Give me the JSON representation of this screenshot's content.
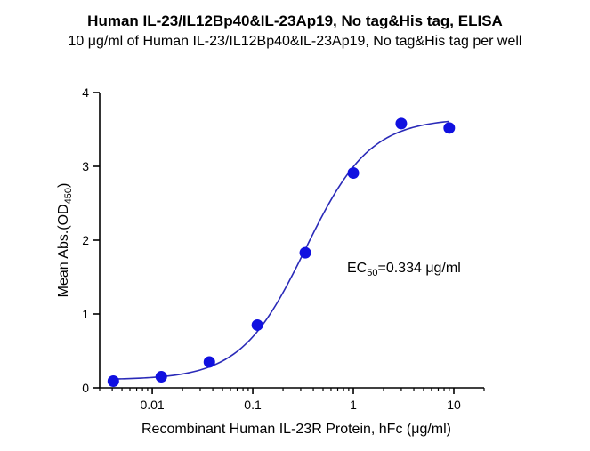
{
  "chart_data": {
    "type": "scatter",
    "title": "Human IL-23/IL12Bp40&IL-23Ap19, No tag&His tag, ELISA",
    "subtitle": "10 μg/ml of Human IL-23/IL12Bp40&IL-23Ap19, No tag&His tag per well",
    "xlabel": "Recombinant Human IL-23R Protein, hFc (μg/ml)",
    "ylabel": {
      "prefix": "Mean Abs.(OD",
      "subscript": "450",
      "suffix": ")"
    },
    "x_scale": "log",
    "xlim": [
      0.003,
      20
    ],
    "ylim": [
      0,
      4
    ],
    "x_ticks": [
      {
        "value": 0.01,
        "label": "0.01"
      },
      {
        "value": 0.1,
        "label": "0.1"
      },
      {
        "value": 1,
        "label": "1"
      },
      {
        "value": 10,
        "label": "10"
      }
    ],
    "y_ticks": [
      {
        "value": 0,
        "label": "0"
      },
      {
        "value": 1,
        "label": "1"
      },
      {
        "value": 2,
        "label": "2"
      },
      {
        "value": 3,
        "label": "3"
      },
      {
        "value": 4,
        "label": "4"
      }
    ],
    "points": [
      {
        "x": 0.0041,
        "y": 0.09
      },
      {
        "x": 0.0123,
        "y": 0.15
      },
      {
        "x": 0.037,
        "y": 0.35
      },
      {
        "x": 0.111,
        "y": 0.85
      },
      {
        "x": 0.333,
        "y": 1.83
      },
      {
        "x": 1.0,
        "y": 2.91
      },
      {
        "x": 3.0,
        "y": 3.58
      },
      {
        "x": 9.0,
        "y": 3.52
      }
    ],
    "fit": {
      "model": "4PL",
      "bottom": 0.11,
      "top": 3.65,
      "ec50": 0.334,
      "hill": 1.35
    },
    "annotation": {
      "prefix": "EC",
      "subscript": "50",
      "suffix": "=0.334 μg/ml"
    },
    "colors": {
      "marker": "#1010e0",
      "curve": "#2a2ab8",
      "axis": "#000000"
    }
  }
}
